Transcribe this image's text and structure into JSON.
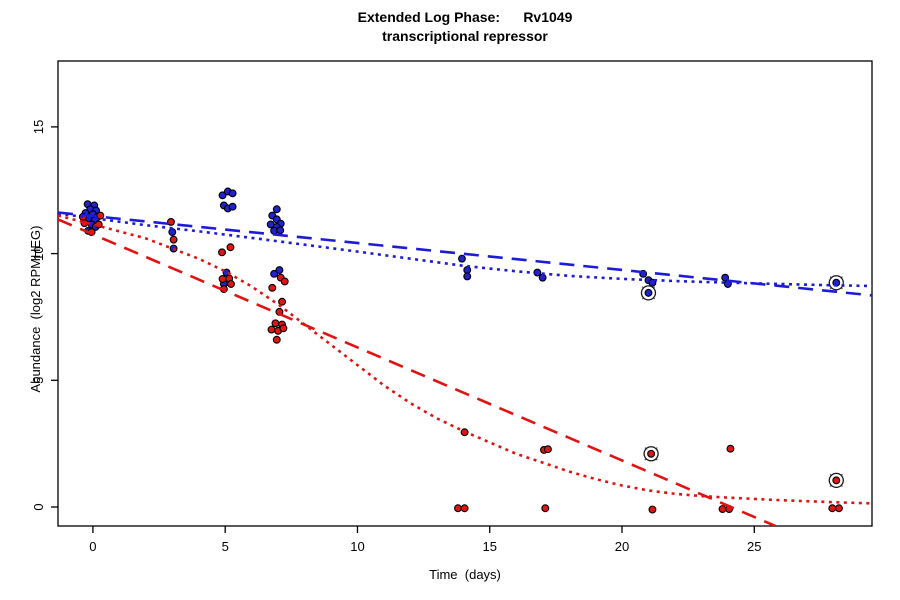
{
  "window": {
    "background": "#ffffff"
  },
  "chart_data": {
    "type": "scatter",
    "title": "Extended Log Phase:      Rv1049",
    "subtitle": "transcriptional repressor",
    "xlabel": "Time  (days)",
    "ylabel": "Abundance  (log2 RPMHEG)",
    "xlim": [
      -1.32,
      29.45
    ],
    "ylim": [
      -0.75,
      17.6
    ],
    "x_ticks": [
      0,
      5,
      10,
      15,
      20,
      25
    ],
    "y_ticks": [
      0,
      5,
      10,
      15
    ],
    "grid": false,
    "legend": null,
    "colors": {
      "blue": "#1c1cd8",
      "red": "#e11212",
      "point_fill_blue": "#2222cc",
      "point_fill_red": "#e01616",
      "point_border": "#000000",
      "outlier_ring": "#1a1a1a",
      "outlier_cross": "#555555",
      "axis": "#000000"
    },
    "series": [
      {
        "name": "blue-condition",
        "color_key": "point_fill_blue",
        "points": [
          [
            -0.2,
            11.95
          ],
          [
            0.05,
            11.9
          ],
          [
            -0.1,
            11.75
          ],
          [
            0.12,
            11.7
          ],
          [
            -0.28,
            11.6
          ],
          [
            0.0,
            11.55
          ],
          [
            0.18,
            11.45
          ],
          [
            -0.15,
            11.4
          ],
          [
            0.05,
            11.3
          ],
          [
            -0.05,
            11.15
          ],
          [
            0.1,
            11.05
          ],
          [
            -0.18,
            10.9
          ],
          [
            3.0,
            10.85
          ],
          [
            3.05,
            10.2
          ],
          [
            4.9,
            12.3
          ],
          [
            5.1,
            12.45
          ],
          [
            5.28,
            12.38
          ],
          [
            4.95,
            11.9
          ],
          [
            5.1,
            11.78
          ],
          [
            5.28,
            11.85
          ],
          [
            5.05,
            9.25
          ],
          [
            4.95,
            8.8
          ],
          [
            6.95,
            11.75
          ],
          [
            6.78,
            11.5
          ],
          [
            6.95,
            11.35
          ],
          [
            6.72,
            11.15
          ],
          [
            7.1,
            11.18
          ],
          [
            6.95,
            11.05
          ],
          [
            6.85,
            10.9
          ],
          [
            7.08,
            10.92
          ],
          [
            7.05,
            9.35
          ],
          [
            6.85,
            9.2
          ],
          [
            13.95,
            9.8
          ],
          [
            14.15,
            9.35
          ],
          [
            14.15,
            9.1
          ],
          [
            16.8,
            9.25
          ],
          [
            17.0,
            9.05
          ],
          [
            20.8,
            9.2
          ],
          [
            21.0,
            8.95
          ],
          [
            21.15,
            8.85
          ],
          [
            23.9,
            9.05
          ],
          [
            24.0,
            8.8
          ]
        ]
      },
      {
        "name": "red-condition",
        "color_key": "point_fill_red",
        "points": [
          [
            -0.38,
            11.45
          ],
          [
            0.28,
            11.5
          ],
          [
            -0.32,
            11.2
          ],
          [
            0.22,
            11.15
          ],
          [
            -0.05,
            10.85
          ],
          [
            2.95,
            11.25
          ],
          [
            3.05,
            10.55
          ],
          [
            4.88,
            10.05
          ],
          [
            5.2,
            10.25
          ],
          [
            4.9,
            9.0
          ],
          [
            5.15,
            9.02
          ],
          [
            5.22,
            8.8
          ],
          [
            4.95,
            8.6
          ],
          [
            7.1,
            9.05
          ],
          [
            7.25,
            8.9
          ],
          [
            6.78,
            8.65
          ],
          [
            7.15,
            8.1
          ],
          [
            7.05,
            7.7
          ],
          [
            6.9,
            7.25
          ],
          [
            7.15,
            7.2
          ],
          [
            6.75,
            7.0
          ],
          [
            7.0,
            6.95
          ],
          [
            7.2,
            7.05
          ],
          [
            6.95,
            6.6
          ],
          [
            14.05,
            2.95
          ],
          [
            13.8,
            -0.05
          ],
          [
            14.05,
            -0.05
          ],
          [
            17.05,
            2.25
          ],
          [
            17.2,
            2.28
          ],
          [
            17.1,
            -0.05
          ],
          [
            21.15,
            -0.1
          ],
          [
            24.1,
            2.3
          ],
          [
            23.8,
            -0.08
          ],
          [
            24.05,
            -0.08
          ],
          [
            27.95,
            -0.05
          ],
          [
            28.2,
            -0.05
          ]
        ]
      }
    ],
    "outlier_points": [
      {
        "series": "blue-condition",
        "color_key": "point_fill_blue",
        "x": 21.0,
        "y": 8.45
      },
      {
        "series": "blue-condition",
        "color_key": "point_fill_blue",
        "x": 28.1,
        "y": 8.85
      },
      {
        "series": "red-condition",
        "color_key": "point_fill_red",
        "x": 21.1,
        "y": 2.1
      },
      {
        "series": "red-condition",
        "color_key": "point_fill_red",
        "x": 28.1,
        "y": 1.05
      }
    ],
    "trend_lines": [
      {
        "name": "blue-linear-fit",
        "style": "dashed",
        "color_key": "blue",
        "points": [
          [
            -1.32,
            11.62
          ],
          [
            29.45,
            8.35
          ]
        ]
      },
      {
        "name": "blue-smooth-fit",
        "style": "dotted",
        "color_key": "blue",
        "points": [
          [
            -1.32,
            11.58
          ],
          [
            0,
            11.4
          ],
          [
            2,
            11.12
          ],
          [
            4,
            10.88
          ],
          [
            6,
            10.62
          ],
          [
            8,
            10.35
          ],
          [
            10,
            10.08
          ],
          [
            12,
            9.8
          ],
          [
            14,
            9.52
          ],
          [
            16,
            9.3
          ],
          [
            18,
            9.12
          ],
          [
            20,
            9.0
          ],
          [
            22,
            8.92
          ],
          [
            24,
            8.85
          ],
          [
            26,
            8.8
          ],
          [
            28,
            8.75
          ],
          [
            29.45,
            8.72
          ]
        ]
      },
      {
        "name": "red-linear-fit",
        "style": "dashed",
        "color_key": "red",
        "points": [
          [
            -1.32,
            11.35
          ],
          [
            25.8,
            -0.75
          ]
        ]
      },
      {
        "name": "red-smooth-fit",
        "style": "dotted",
        "color_key": "red",
        "points": [
          [
            -1.32,
            11.5
          ],
          [
            0,
            11.15
          ],
          [
            2,
            10.6
          ],
          [
            4,
            9.8
          ],
          [
            5,
            9.3
          ],
          [
            6,
            8.7
          ],
          [
            7,
            8.0
          ],
          [
            8,
            7.2
          ],
          [
            9,
            6.4
          ],
          [
            10,
            5.6
          ],
          [
            11,
            4.8
          ],
          [
            12,
            4.1
          ],
          [
            13,
            3.5
          ],
          [
            14,
            3.0
          ],
          [
            15,
            2.55
          ],
          [
            16,
            2.1
          ],
          [
            17,
            1.75
          ],
          [
            18,
            1.4
          ],
          [
            19,
            1.1
          ],
          [
            20,
            0.85
          ],
          [
            21,
            0.65
          ],
          [
            22,
            0.52
          ],
          [
            23,
            0.43
          ],
          [
            24,
            0.37
          ],
          [
            25,
            0.32
          ],
          [
            26,
            0.27
          ],
          [
            27,
            0.23
          ],
          [
            28,
            0.19
          ],
          [
            29.45,
            0.14
          ]
        ]
      }
    ]
  }
}
